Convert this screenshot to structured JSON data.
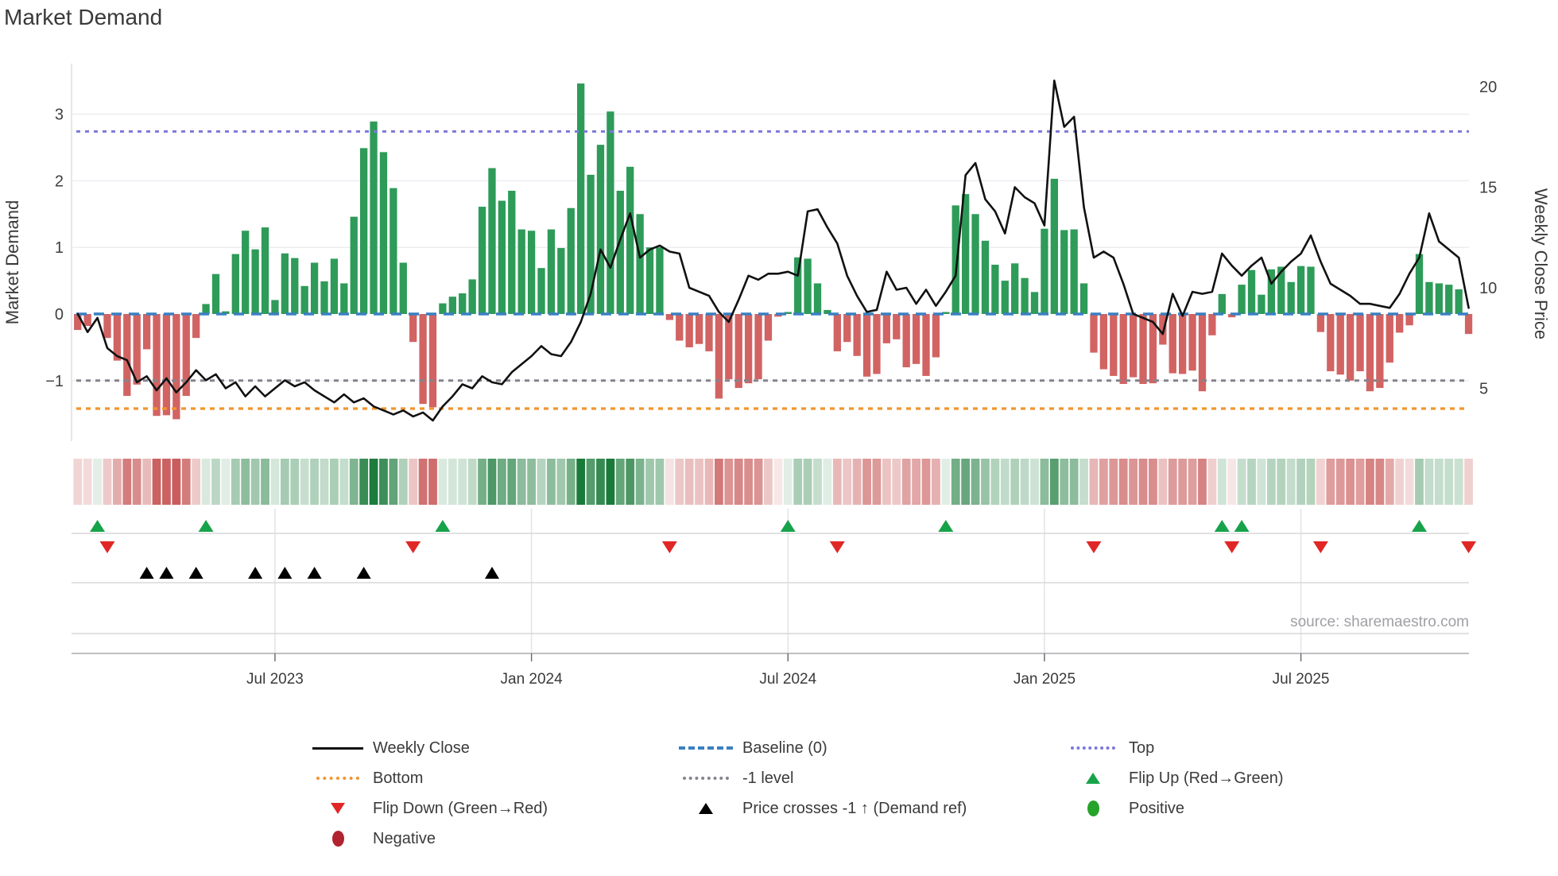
{
  "header": {
    "title": "Market Demand"
  },
  "axes": {
    "left_label": "Market Demand",
    "right_label": "Weekly Close Price",
    "left_ticks": [
      {
        "value": 3,
        "label": "3"
      },
      {
        "value": 2,
        "label": "2"
      },
      {
        "value": 1,
        "label": "1"
      },
      {
        "value": 0,
        "label": "0"
      },
      {
        "value": -1,
        "label": "−1"
      }
    ],
    "right_ticks": [
      {
        "value": 20,
        "label": "20"
      },
      {
        "value": 15,
        "label": "15"
      },
      {
        "value": 10,
        "label": "10"
      },
      {
        "value": 5,
        "label": "5"
      }
    ],
    "x_ticks": [
      {
        "week": 20,
        "label": "Jul 2023"
      },
      {
        "week": 46,
        "label": "Jan 2024"
      },
      {
        "week": 72,
        "label": "Jul 2024"
      },
      {
        "week": 98,
        "label": "Jan 2025"
      },
      {
        "week": 124,
        "label": "Jul 2025"
      }
    ]
  },
  "footer": {
    "source": "source: sharemaestro.com"
  },
  "legend": {
    "items": [
      {
        "name": "weekly-close",
        "label": "Weekly Close",
        "swatch": "line-solid",
        "color": "#111111",
        "col": 1,
        "row": 1
      },
      {
        "name": "bottom",
        "label": "Bottom",
        "swatch": "line-dotted",
        "color": "#f2952e",
        "col": 1,
        "row": 2
      },
      {
        "name": "flip-down",
        "label": "Flip Down (Green→Red)",
        "swatch": "tri-down",
        "color": "#e12626",
        "col": 1,
        "row": 3
      },
      {
        "name": "negative",
        "label": "Negative",
        "swatch": "dot",
        "color": "#b0232f",
        "col": 1,
        "row": 4
      },
      {
        "name": "baseline",
        "label": "Baseline (0)",
        "swatch": "line-dashed",
        "color": "#3a80c1",
        "col": 2,
        "row": 1
      },
      {
        "name": "minus1-level",
        "label": "-1 level",
        "swatch": "line-dotted",
        "color": "#84848c",
        "col": 2,
        "row": 2
      },
      {
        "name": "price-crosses",
        "label": "Price crosses -1 ↑ (Demand ref)",
        "swatch": "tri-up",
        "color": "#000000",
        "col": 2,
        "row": 3
      },
      {
        "name": "top",
        "label": "Top",
        "swatch": "line-dotted",
        "color": "#7b79da",
        "col": 3,
        "row": 1
      },
      {
        "name": "flip-up",
        "label": "Flip Up (Red→Green)",
        "swatch": "tri-up",
        "color": "#17a34a",
        "col": 3,
        "row": 2
      },
      {
        "name": "positive",
        "label": "Positive",
        "swatch": "dot",
        "color": "#25a32a",
        "col": 3,
        "row": 3
      }
    ]
  },
  "chart_data": {
    "type": "combo",
    "title": "Market Demand",
    "weeks": 142,
    "left_ylabel": "Market Demand",
    "right_ylabel": "Weekly Close Price",
    "left_ylim": [
      -1.9,
      3.75
    ],
    "right_ylim": [
      2.5,
      21.2
    ],
    "grid": "horizontal-light",
    "legend_position": "bottom",
    "ref_lines": {
      "baseline": 0,
      "top": 2.74,
      "minus1": -1,
      "bottom": -1.42
    },
    "series": [
      {
        "name": "Market Demand",
        "type": "bar",
        "axis": "left",
        "values": [
          -0.24,
          -0.18,
          0.02,
          -0.36,
          -0.7,
          -1.23,
          -1.06,
          -0.53,
          -1.53,
          -1.52,
          -1.58,
          -1.23,
          -0.36,
          0.15,
          0.6,
          0.04,
          0.9,
          1.25,
          0.97,
          1.3,
          0.21,
          0.91,
          0.84,
          0.42,
          0.77,
          0.49,
          0.83,
          0.46,
          1.46,
          2.49,
          2.89,
          2.43,
          1.89,
          0.77,
          -0.42,
          -1.35,
          -1.4,
          0.16,
          0.26,
          0.31,
          0.52,
          1.61,
          2.19,
          1.7,
          1.85,
          1.27,
          1.25,
          0.69,
          1.27,
          0.99,
          1.59,
          3.46,
          2.09,
          2.54,
          3.04,
          1.85,
          2.21,
          1.5,
          1.0,
          1.0,
          -0.09,
          -0.4,
          -0.5,
          -0.45,
          -0.56,
          -1.27,
          -0.98,
          -1.11,
          -1.04,
          -0.98,
          -0.4,
          -0.04,
          0.03,
          0.85,
          0.83,
          0.46,
          0.06,
          -0.56,
          -0.42,
          -0.63,
          -0.94,
          -0.9,
          -0.44,
          -0.38,
          -0.8,
          -0.75,
          -0.93,
          -0.65,
          0.03,
          1.63,
          1.8,
          1.5,
          1.1,
          0.74,
          0.5,
          0.76,
          0.54,
          0.33,
          1.28,
          2.03,
          1.26,
          1.27,
          0.46,
          -0.58,
          -0.83,
          -0.93,
          -1.05,
          -0.95,
          -1.05,
          -1.04,
          -0.46,
          -0.89,
          -0.9,
          -0.85,
          -1.16,
          -0.32,
          0.3,
          -0.05,
          0.44,
          0.66,
          0.29,
          0.67,
          0.71,
          0.48,
          0.72,
          0.71,
          -0.27,
          -0.86,
          -0.91,
          -1.0,
          -0.86,
          -1.16,
          -1.11,
          -0.73,
          -0.28,
          -0.17,
          0.9,
          0.48,
          0.46,
          0.44,
          0.37,
          -0.3
        ]
      },
      {
        "name": "Weekly Close",
        "type": "line",
        "axis": "right",
        "values": [
          8.7,
          7.8,
          8.5,
          7.0,
          6.6,
          6.4,
          5.3,
          5.6,
          4.9,
          5.5,
          4.8,
          5.3,
          5.9,
          5.4,
          5.7,
          5.0,
          5.3,
          4.6,
          5.1,
          4.6,
          5.0,
          5.4,
          5.1,
          5.3,
          4.9,
          4.6,
          4.3,
          4.7,
          4.3,
          4.5,
          4.1,
          3.9,
          3.7,
          3.9,
          3.6,
          3.8,
          3.4,
          4.1,
          4.6,
          5.2,
          5.0,
          5.6,
          5.3,
          5.2,
          5.8,
          6.2,
          6.6,
          7.1,
          6.7,
          6.6,
          7.3,
          8.3,
          9.7,
          11.9,
          11.0,
          12.4,
          13.7,
          11.5,
          11.9,
          12.1,
          11.8,
          11.7,
          10.0,
          9.8,
          9.6,
          8.8,
          8.3,
          9.4,
          10.6,
          10.4,
          10.7,
          10.7,
          10.8,
          10.6,
          13.8,
          13.9,
          13.0,
          12.2,
          10.6,
          9.6,
          8.8,
          8.9,
          10.8,
          9.9,
          10.0,
          9.2,
          9.9,
          9.1,
          9.8,
          10.6,
          15.6,
          16.2,
          14.4,
          13.8,
          12.7,
          15.0,
          14.5,
          14.2,
          13.1,
          20.3,
          18.0,
          18.5,
          14.0,
          11.5,
          11.8,
          11.5,
          10.2,
          8.7,
          8.5,
          8.3,
          7.7,
          9.7,
          8.6,
          9.8,
          9.7,
          9.8,
          11.7,
          11.1,
          10.6,
          11.1,
          11.5,
          10.2,
          10.8,
          11.3,
          11.7,
          12.6,
          11.3,
          10.2,
          9.9,
          9.6,
          9.2,
          9.2,
          9.1,
          9.0,
          9.7,
          10.7,
          11.5,
          13.7,
          12.3,
          11.9,
          11.5,
          9.0
        ]
      }
    ],
    "heatmap": {
      "description": "weekly strip colored by Market Demand value (red negative, green positive)"
    },
    "markers": {
      "flip_up_weeks": [
        2,
        13,
        37,
        72,
        88,
        116,
        118,
        136
      ],
      "flip_down_weeks": [
        3,
        34,
        60,
        77,
        103,
        117,
        126,
        141
      ],
      "price_cross_weeks": [
        7,
        9,
        12,
        18,
        21,
        24,
        29,
        42
      ]
    },
    "colors": {
      "positive_bar": "#2e9b59",
      "negative_bar": "#d26363",
      "baseline": "#3a80c1",
      "top": "#7b79da",
      "bottom": "#f2952e",
      "minus1": "#84848c",
      "price_line": "#111111",
      "flip_up": "#17a34a",
      "flip_down": "#e12626",
      "price_cross": "#000000",
      "positive_dot": "#25a32a",
      "negative_dot": "#b0232f",
      "heat_green_base": [
        26,
        122,
        58
      ],
      "heat_red_base": [
        198,
        83,
        83
      ]
    }
  }
}
